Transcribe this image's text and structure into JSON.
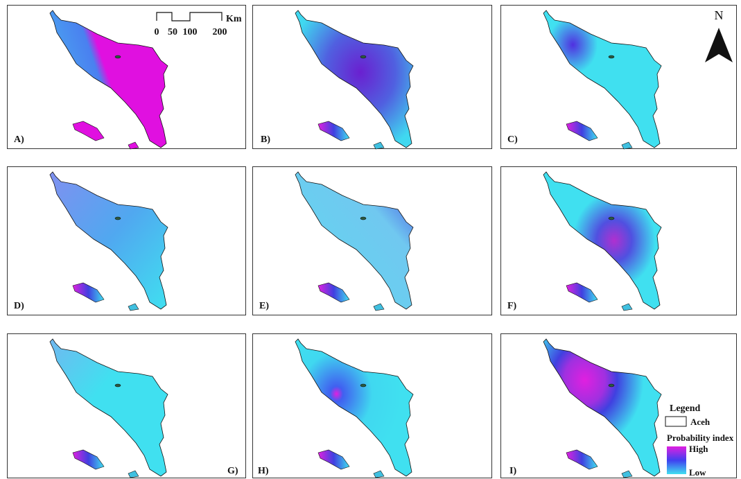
{
  "panels": [
    {
      "label": "A)"
    },
    {
      "label": "B)"
    },
    {
      "label": "C)"
    },
    {
      "label": "D)"
    },
    {
      "label": "E)"
    },
    {
      "label": "F)"
    },
    {
      "label": "G)"
    },
    {
      "label": "H)"
    },
    {
      "label": "I)"
    }
  ],
  "scale_bar": {
    "ticks": [
      0,
      50,
      100,
      200
    ],
    "unit": "Km"
  },
  "north_arrow": "N",
  "legend": {
    "title": "Legend",
    "boundary": "Aceh",
    "index_title": "Probability index",
    "high": "High",
    "low": "Low"
  }
}
